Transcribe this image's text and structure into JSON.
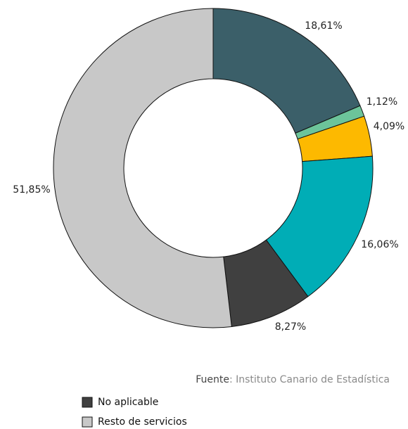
{
  "chart_data": {
    "type": "donut",
    "categories": [
      null,
      null,
      null,
      null,
      "No aplicable",
      "Resto de servicios"
    ],
    "values": [
      18.61,
      1.12,
      4.09,
      16.06,
      8.27,
      51.85
    ],
    "value_labels": [
      "18,61%",
      "1,12%",
      "4,09%",
      "16,06%",
      "8,27%",
      "51,85%"
    ],
    "colors": [
      "#3b5f69",
      "#6cc49a",
      "#fdb900",
      "#00adb6",
      "#404040",
      "#c8c8c8"
    ],
    "source_label": "Fuente",
    "source": ": Instituto Canario de Estadística"
  }
}
